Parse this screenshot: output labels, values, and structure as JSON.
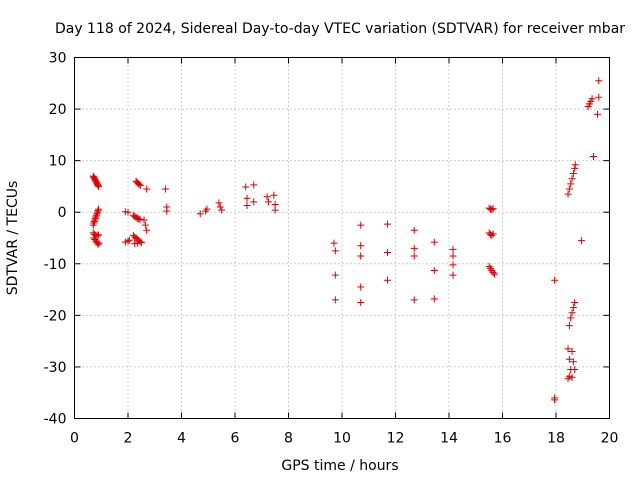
{
  "chart_data": {
    "type": "scatter",
    "title": "Day 118 of 2024, Sidereal Day-to-day VTEC variation (SDTVAR) for receiver mbar",
    "xlabel": "GPS time / hours",
    "ylabel": "SDTVAR / TECUs",
    "xlim": [
      0,
      20
    ],
    "ylim": [
      -40,
      30
    ],
    "xticks": [
      0,
      2,
      4,
      6,
      8,
      10,
      12,
      14,
      16,
      18,
      20
    ],
    "yticks": [
      -40,
      -30,
      -20,
      -10,
      0,
      10,
      20,
      30
    ],
    "grid": true,
    "marker": "+",
    "color": "#e00000",
    "series": [
      {
        "name": "SDTVAR",
        "points": [
          [
            0.7,
            7.0
          ],
          [
            0.72,
            6.8
          ],
          [
            0.74,
            6.6
          ],
          [
            0.76,
            6.4
          ],
          [
            0.78,
            6.2
          ],
          [
            0.8,
            6.0
          ],
          [
            0.82,
            5.8
          ],
          [
            0.84,
            5.6
          ],
          [
            0.86,
            5.4
          ],
          [
            0.88,
            5.2
          ],
          [
            0.9,
            5.0
          ],
          [
            0.7,
            -2.5
          ],
          [
            0.72,
            -2.1
          ],
          [
            0.74,
            -1.8
          ],
          [
            0.76,
            -1.5
          ],
          [
            0.78,
            -1.2
          ],
          [
            0.8,
            -0.9
          ],
          [
            0.82,
            -0.6
          ],
          [
            0.84,
            -0.3
          ],
          [
            0.86,
            0.0
          ],
          [
            0.88,
            0.3
          ],
          [
            0.9,
            0.6
          ],
          [
            0.7,
            -4.0
          ],
          [
            0.75,
            -4.3
          ],
          [
            0.8,
            -4.5
          ],
          [
            0.85,
            -4.6
          ],
          [
            0.9,
            -4.4
          ],
          [
            0.72,
            -5.0
          ],
          [
            0.76,
            -5.3
          ],
          [
            0.8,
            -5.6
          ],
          [
            0.84,
            -5.9
          ],
          [
            0.88,
            -6.2
          ],
          [
            0.92,
            -6.0
          ],
          [
            1.9,
            0.1
          ],
          [
            2.0,
            0.0
          ],
          [
            1.9,
            -5.8
          ],
          [
            2.0,
            -5.6
          ],
          [
            2.05,
            -5.4
          ],
          [
            2.2,
            -0.6
          ],
          [
            2.25,
            -0.8
          ],
          [
            2.3,
            -1.0
          ],
          [
            2.35,
            -1.2
          ],
          [
            2.4,
            -1.3
          ],
          [
            2.45,
            -1.4
          ],
          [
            2.2,
            -4.5
          ],
          [
            2.25,
            -4.8
          ],
          [
            2.3,
            -5.0
          ],
          [
            2.35,
            -5.2
          ],
          [
            2.4,
            -5.5
          ],
          [
            2.45,
            -5.7
          ],
          [
            2.5,
            -5.9
          ],
          [
            2.25,
            -6.1
          ],
          [
            2.35,
            -6.0
          ],
          [
            2.3,
            6.0
          ],
          [
            2.34,
            5.8
          ],
          [
            2.38,
            5.6
          ],
          [
            2.42,
            5.4
          ],
          [
            2.46,
            5.2
          ],
          [
            2.6,
            -1.5
          ],
          [
            2.65,
            -2.5
          ],
          [
            2.7,
            -3.5
          ],
          [
            2.7,
            4.5
          ],
          [
            3.4,
            4.5
          ],
          [
            3.45,
            1.0
          ],
          [
            3.45,
            0.2
          ],
          [
            4.7,
            -0.3
          ],
          [
            4.9,
            0.2
          ],
          [
            4.95,
            0.6
          ],
          [
            5.4,
            1.8
          ],
          [
            5.45,
            1.0
          ],
          [
            5.5,
            0.4
          ],
          [
            6.4,
            4.9
          ],
          [
            6.45,
            2.7
          ],
          [
            6.45,
            1.3
          ],
          [
            6.7,
            5.3
          ],
          [
            6.7,
            2.0
          ],
          [
            7.2,
            3.0
          ],
          [
            7.25,
            2.0
          ],
          [
            7.45,
            3.3
          ],
          [
            7.5,
            1.5
          ],
          [
            7.5,
            0.4
          ],
          [
            9.7,
            -6.0
          ],
          [
            9.75,
            -7.5
          ],
          [
            9.75,
            -12.2
          ],
          [
            9.75,
            -17.0
          ],
          [
            10.7,
            -2.5
          ],
          [
            10.7,
            -6.5
          ],
          [
            10.7,
            -8.5
          ],
          [
            10.7,
            -14.5
          ],
          [
            10.7,
            -17.5
          ],
          [
            11.7,
            -2.3
          ],
          [
            11.7,
            -7.8
          ],
          [
            11.7,
            -13.2
          ],
          [
            12.7,
            -3.5
          ],
          [
            12.7,
            -7.0
          ],
          [
            12.7,
            -8.5
          ],
          [
            12.7,
            -17.0
          ],
          [
            13.45,
            -5.8
          ],
          [
            13.45,
            -11.3
          ],
          [
            13.45,
            -16.8
          ],
          [
            14.15,
            -7.2
          ],
          [
            14.15,
            -8.5
          ],
          [
            14.15,
            -10.2
          ],
          [
            14.15,
            -12.2
          ],
          [
            15.5,
            0.8
          ],
          [
            15.55,
            0.6
          ],
          [
            15.6,
            0.5
          ],
          [
            15.65,
            0.7
          ],
          [
            15.5,
            -4.0
          ],
          [
            15.55,
            -4.3
          ],
          [
            15.6,
            -4.5
          ],
          [
            15.65,
            -4.2
          ],
          [
            15.5,
            -10.5
          ],
          [
            15.55,
            -10.9
          ],
          [
            15.6,
            -11.3
          ],
          [
            15.65,
            -11.7
          ],
          [
            15.7,
            -12.0
          ],
          [
            17.95,
            -13.2
          ],
          [
            17.95,
            -36.0
          ],
          [
            17.95,
            -36.4
          ],
          [
            18.45,
            3.5
          ],
          [
            18.5,
            4.5
          ],
          [
            18.55,
            5.5
          ],
          [
            18.6,
            6.5
          ],
          [
            18.65,
            7.5
          ],
          [
            18.7,
            8.5
          ],
          [
            18.72,
            9.2
          ],
          [
            18.45,
            -26.5
          ],
          [
            18.5,
            -28.5
          ],
          [
            18.55,
            -30.5
          ],
          [
            18.6,
            -32.0
          ],
          [
            18.5,
            -22.0
          ],
          [
            18.55,
            -20.5
          ],
          [
            18.6,
            -19.5
          ],
          [
            18.65,
            -18.5
          ],
          [
            18.7,
            -17.5
          ],
          [
            18.6,
            -27.0
          ],
          [
            18.65,
            -29.0
          ],
          [
            18.7,
            -30.5
          ],
          [
            18.45,
            -32.3
          ],
          [
            18.5,
            -31.8
          ],
          [
            18.95,
            -5.5
          ],
          [
            19.2,
            20.5
          ],
          [
            19.25,
            21.0
          ],
          [
            19.3,
            21.5
          ],
          [
            19.35,
            22.0
          ],
          [
            19.4,
            10.8
          ],
          [
            19.55,
            19.0
          ],
          [
            19.6,
            22.3
          ],
          [
            19.6,
            25.5
          ]
        ]
      }
    ]
  }
}
